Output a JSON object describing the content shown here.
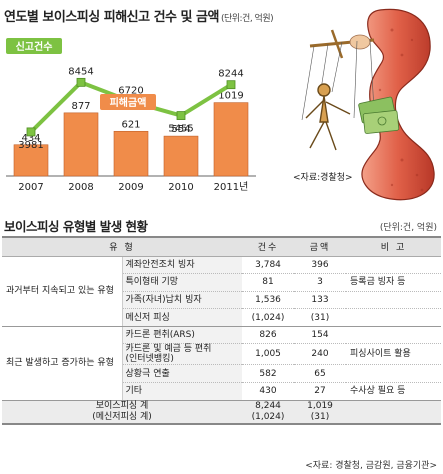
{
  "header": {
    "title": "연도별 보이스피싱 피해신고 건수 및 금액",
    "unit": "(단위:건, 억원)"
  },
  "chart_data": {
    "type": "bar",
    "categories": [
      "2007",
      "2008",
      "2009",
      "2010",
      "2011년"
    ],
    "series": [
      {
        "name": "피해금액",
        "kind": "bar",
        "values": [
          434,
          877,
          621,
          554,
          1019
        ]
      },
      {
        "name": "신고건수",
        "kind": "line",
        "values": [
          3981,
          8454,
          6720,
          5455,
          8244
        ]
      }
    ],
    "value_labels": {
      "bar": [
        "434",
        "877",
        "621",
        "554",
        "1019"
      ],
      "line": [
        "3981",
        "8454",
        "6720",
        "5455",
        "8244"
      ]
    },
    "bar_ylim": [
      0,
      2000
    ],
    "line_ylim": [
      0,
      13000
    ],
    "colors": {
      "bar": "#f08c4a",
      "bar_border": "#c0602a",
      "line": "#7dc242",
      "line_label_bg": "#7dc242",
      "bar_label_bg": "#f08c4a"
    },
    "grid": false,
    "legend": "inline-labels"
  },
  "illustration": {
    "caption": "<자료:경찰청>",
    "icon": "telephone-handset-puppet-icon"
  },
  "table": {
    "title": "보이스피싱 유형별 발생 현황",
    "unit": "(단위:건, 억원)",
    "headers": [
      "유      형",
      "건수",
      "금액",
      "비  고"
    ],
    "groups": [
      {
        "category": "과거부터 지속되고 있는 유형",
        "rows": [
          {
            "type": [
              "계좌안전조치 빙자"
            ],
            "count": "3,784",
            "amount": "396",
            "note": ""
          },
          {
            "type": [
              "특이형태 기망"
            ],
            "count": "81",
            "amount": "3",
            "note": "등록금 빙자 등"
          },
          {
            "type": [
              "가족(자녀)납치 빙자"
            ],
            "count": "1,536",
            "amount": "133",
            "note": ""
          },
          {
            "type": [
              "메신저 피싱"
            ],
            "count": "(1,024)",
            "amount": "(31)",
            "note": ""
          }
        ]
      },
      {
        "category": "최근 발생하고 증가하는 유형",
        "rows": [
          {
            "type": [
              "카드론 편취(ARS)"
            ],
            "count": "826",
            "amount": "154",
            "note": ""
          },
          {
            "type": [
              "카드론 및 예금 등 편취",
              "(인터넷뱅킹)"
            ],
            "count": "1,005",
            "amount": "240",
            "note": "피싱사이트 활용"
          },
          {
            "type": [
              "상황극 연출"
            ],
            "count": "582",
            "amount": "65",
            "note": ""
          },
          {
            "type": [
              "기타"
            ],
            "count": "430",
            "amount": "27",
            "note": "수사상 필요 등"
          }
        ]
      }
    ],
    "total": {
      "label": [
        "보이스피싱 계",
        "(메신저피싱 계)"
      ],
      "count": [
        "8,244",
        "(1,024)"
      ],
      "amount": [
        "1,019",
        "(31)"
      ],
      "note": ""
    }
  },
  "source": "<자료: 경찰청, 금감원, 금융기관>"
}
